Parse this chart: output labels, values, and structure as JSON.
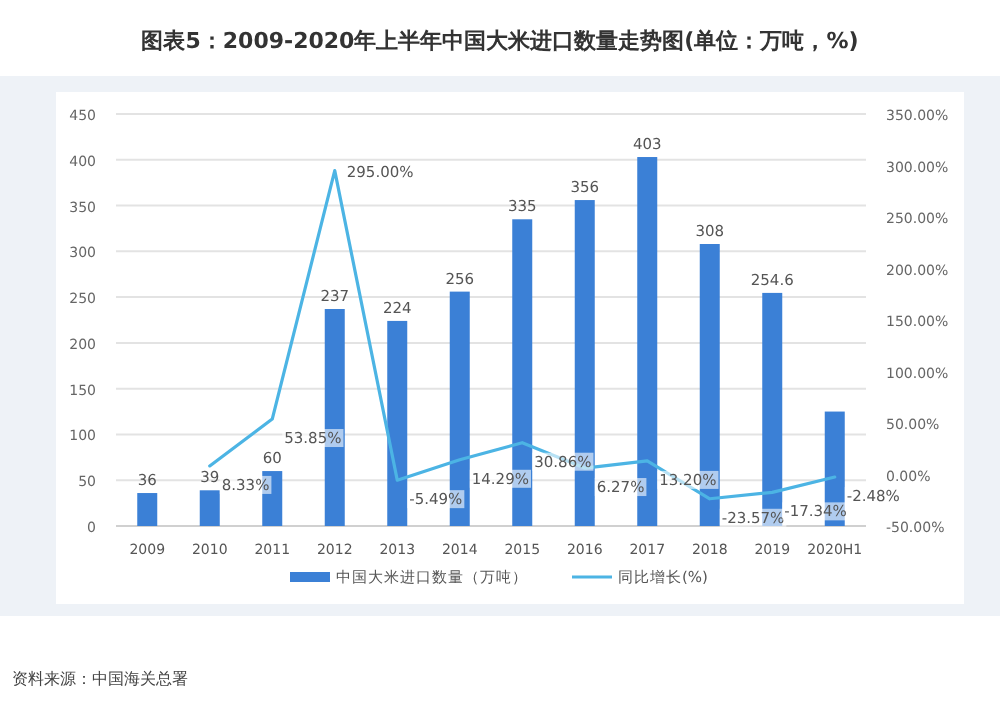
{
  "chart_data": {
    "type": "bar",
    "title": "图表5：2009-2020年上半年中国大米进口数量走势图(单位：万吨，%)",
    "categories": [
      "2009",
      "2010",
      "2011",
      "2012",
      "2013",
      "2014",
      "2015",
      "2016",
      "2017",
      "2018",
      "2019",
      "2020H1"
    ],
    "series": [
      {
        "name": "中国大米进口数量（万吨）",
        "color": "#3b80d6",
        "values": [
          36,
          39,
          60,
          237,
          224,
          256,
          335,
          356,
          403,
          308,
          254.6,
          125
        ],
        "value_labels": [
          "36",
          "39",
          "60",
          "237",
          "224",
          "256",
          "335",
          "356",
          "403",
          "308",
          "254.6",
          null
        ]
      },
      {
        "name": "同比增长(%)",
        "type": "line",
        "axis": "y2",
        "color": "#4cb4e4",
        "values": [
          null,
          8.33,
          53.85,
          295.0,
          -5.49,
          14.29,
          30.86,
          6.27,
          13.2,
          -23.57,
          -17.34,
          -2.48
        ],
        "value_labels": [
          null,
          "8.33%",
          "53.85%",
          "295.00%",
          "-5.49%",
          "14.29%",
          "30.86%",
          "6.27%",
          "13.20%",
          "-23.57%",
          "-17.34%",
          "-2.48%"
        ]
      }
    ],
    "ylim": [
      0,
      450
    ],
    "yticks": [
      0,
      50,
      100,
      150,
      200,
      250,
      300,
      350,
      400,
      450
    ],
    "y2lim": [
      -50,
      350
    ],
    "y2ticks": [
      {
        "value": -50,
        "label": "-50.00%"
      },
      {
        "value": 0,
        "label": "0.00%"
      },
      {
        "value": 50,
        "label": "50.00%"
      },
      {
        "value": 100,
        "label": "100.00%"
      },
      {
        "value": 150,
        "label": "150.00%"
      },
      {
        "value": 200,
        "label": "200.00%"
      },
      {
        "value": 250,
        "label": "250.00%"
      },
      {
        "value": 300,
        "label": "300.00%"
      },
      {
        "value": 350,
        "label": "350.00%"
      }
    ],
    "grid": "y",
    "legend": "bottom",
    "marker": "none",
    "annotations": [
      "资料来源：中国海关总署"
    ]
  }
}
